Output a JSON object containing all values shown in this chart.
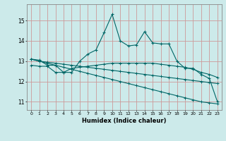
{
  "xlabel": "Humidex (Indice chaleur)",
  "background_color": "#cceaea",
  "grid_color": "#cc9999",
  "line_color": "#006666",
  "x": [
    0,
    1,
    2,
    3,
    4,
    5,
    6,
    7,
    8,
    9,
    10,
    11,
    12,
    13,
    14,
    15,
    16,
    17,
    18,
    19,
    20,
    21,
    22,
    23
  ],
  "line1": [
    13.1,
    13.05,
    12.8,
    12.8,
    12.45,
    12.45,
    13.0,
    13.35,
    13.55,
    14.4,
    15.3,
    14.0,
    13.75,
    13.8,
    14.45,
    13.9,
    13.85,
    13.85,
    13.0,
    12.65,
    12.65,
    12.35,
    12.15,
    11.0
  ],
  "line2": [
    12.8,
    12.75,
    12.75,
    12.45,
    12.45,
    12.65,
    12.7,
    12.75,
    12.8,
    12.85,
    12.9,
    12.9,
    12.9,
    12.9,
    12.9,
    12.9,
    12.85,
    12.8,
    12.75,
    12.7,
    12.6,
    12.45,
    12.35,
    12.2
  ],
  "line3": [
    13.1,
    13.0,
    12.95,
    12.9,
    12.85,
    12.8,
    12.75,
    12.7,
    12.65,
    12.6,
    12.55,
    12.5,
    12.45,
    12.4,
    12.35,
    12.3,
    12.25,
    12.2,
    12.15,
    12.1,
    12.05,
    12.0,
    11.95,
    11.9
  ],
  "line4": [
    13.1,
    13.0,
    12.9,
    12.8,
    12.7,
    12.6,
    12.5,
    12.4,
    12.3,
    12.2,
    12.1,
    12.0,
    11.9,
    11.8,
    11.7,
    11.6,
    11.5,
    11.4,
    11.3,
    11.2,
    11.1,
    11.0,
    10.95,
    10.9
  ],
  "ylim": [
    10.6,
    15.8
  ],
  "yticks": [
    11,
    12,
    13,
    14,
    15
  ],
  "xlim": [
    -0.5,
    23.5
  ]
}
